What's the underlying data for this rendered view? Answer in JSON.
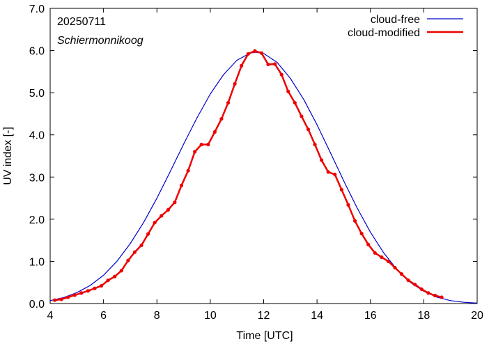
{
  "chart_data": {
    "type": "line",
    "annotations": {
      "date": "20250711",
      "location": "Schiermonnikoog"
    },
    "xlabel": "Time  [UTC]",
    "ylabel": "UV index  [-]",
    "xlim": [
      4,
      20
    ],
    "ylim": [
      0,
      7
    ],
    "xticks": [
      4,
      6,
      8,
      10,
      12,
      14,
      16,
      18,
      20
    ],
    "yticks": [
      "0.0",
      "1.0",
      "2.0",
      "3.0",
      "4.0",
      "5.0",
      "6.0",
      "7.0"
    ],
    "grid": false,
    "legend_position": "top-right",
    "series": [
      {
        "name": "cloud-free",
        "color": "#0000cc",
        "style": "line",
        "x": [
          4.0,
          4.5,
          5.0,
          5.5,
          6.0,
          6.5,
          7.0,
          7.5,
          8.0,
          8.5,
          9.0,
          9.5,
          10.0,
          10.5,
          11.0,
          11.5,
          11.7,
          12.0,
          12.5,
          13.0,
          13.5,
          14.0,
          14.5,
          15.0,
          15.5,
          16.0,
          16.5,
          17.0,
          17.5,
          18.0,
          18.5,
          19.0,
          19.5,
          20.0
        ],
        "y": [
          0.07,
          0.14,
          0.26,
          0.43,
          0.67,
          1.0,
          1.42,
          1.92,
          2.5,
          3.13,
          3.78,
          4.4,
          4.97,
          5.43,
          5.77,
          5.94,
          5.96,
          5.93,
          5.72,
          5.34,
          4.84,
          4.24,
          3.58,
          2.91,
          2.27,
          1.69,
          1.2,
          0.8,
          0.5,
          0.29,
          0.15,
          0.07,
          0.03,
          0.01
        ]
      },
      {
        "name": "cloud-modified",
        "color": "#ee0000",
        "style": "line+points",
        "x": [
          4.17,
          4.42,
          4.67,
          4.92,
          5.17,
          5.42,
          5.67,
          5.92,
          6.17,
          6.42,
          6.67,
          6.92,
          7.17,
          7.42,
          7.67,
          7.92,
          8.17,
          8.42,
          8.67,
          8.92,
          9.17,
          9.42,
          9.67,
          9.92,
          10.17,
          10.42,
          10.67,
          10.92,
          11.17,
          11.42,
          11.67,
          11.92,
          12.17,
          12.42,
          12.67,
          12.92,
          13.17,
          13.42,
          13.67,
          13.92,
          14.17,
          14.42,
          14.67,
          14.92,
          15.17,
          15.42,
          15.67,
          15.92,
          16.17,
          16.42,
          16.67,
          16.92,
          17.17,
          17.42,
          17.67,
          17.92,
          18.17,
          18.42,
          18.67
        ],
        "y": [
          0.08,
          0.1,
          0.15,
          0.2,
          0.25,
          0.3,
          0.36,
          0.42,
          0.55,
          0.64,
          0.78,
          1.02,
          1.22,
          1.38,
          1.65,
          1.92,
          2.08,
          2.22,
          2.4,
          2.8,
          3.15,
          3.6,
          3.77,
          3.77,
          4.07,
          4.38,
          4.76,
          5.21,
          5.64,
          5.92,
          5.99,
          5.94,
          5.67,
          5.68,
          5.43,
          5.03,
          4.76,
          4.44,
          4.13,
          3.77,
          3.4,
          3.12,
          3.06,
          2.7,
          2.34,
          1.96,
          1.66,
          1.4,
          1.2,
          1.1,
          1.0,
          0.85,
          0.7,
          0.55,
          0.45,
          0.34,
          0.25,
          0.19,
          0.15
        ]
      }
    ]
  }
}
